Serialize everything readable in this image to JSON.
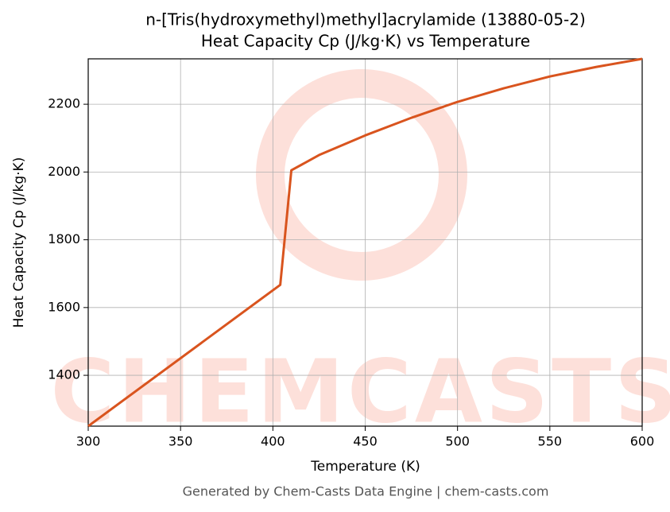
{
  "chart_data": {
    "type": "line",
    "title": "n-[Tris(hydroxymethyl)methyl]acrylamide (13880-05-2)",
    "subtitle": "Heat Capacity Cp (J/kg·K) vs Temperature",
    "x_label": "Temperature (K)",
    "y_label": "Heat Capacity Cp (J/kg·K)",
    "watermark": "CHEMCASTS",
    "footer": "Generated by Chem-Casts Data Engine | chem-casts.com",
    "x": [
      300,
      404,
      410,
      425,
      450,
      475,
      500,
      525,
      550,
      575,
      600
    ],
    "series": [
      {
        "name": "Cp",
        "color": "#d9541e",
        "values": [
          1250,
          1667,
          2005,
          2050,
          2108,
          2160,
          2207,
          2247,
          2282,
          2310,
          2334
        ]
      }
    ],
    "xlim": [
      300,
      600
    ],
    "ylim": [
      1250,
      2334
    ],
    "xticks": [
      300,
      350,
      400,
      450,
      500,
      550,
      600
    ],
    "yticks": [
      1400,
      1600,
      1800,
      2000,
      2200
    ],
    "grid": true
  }
}
